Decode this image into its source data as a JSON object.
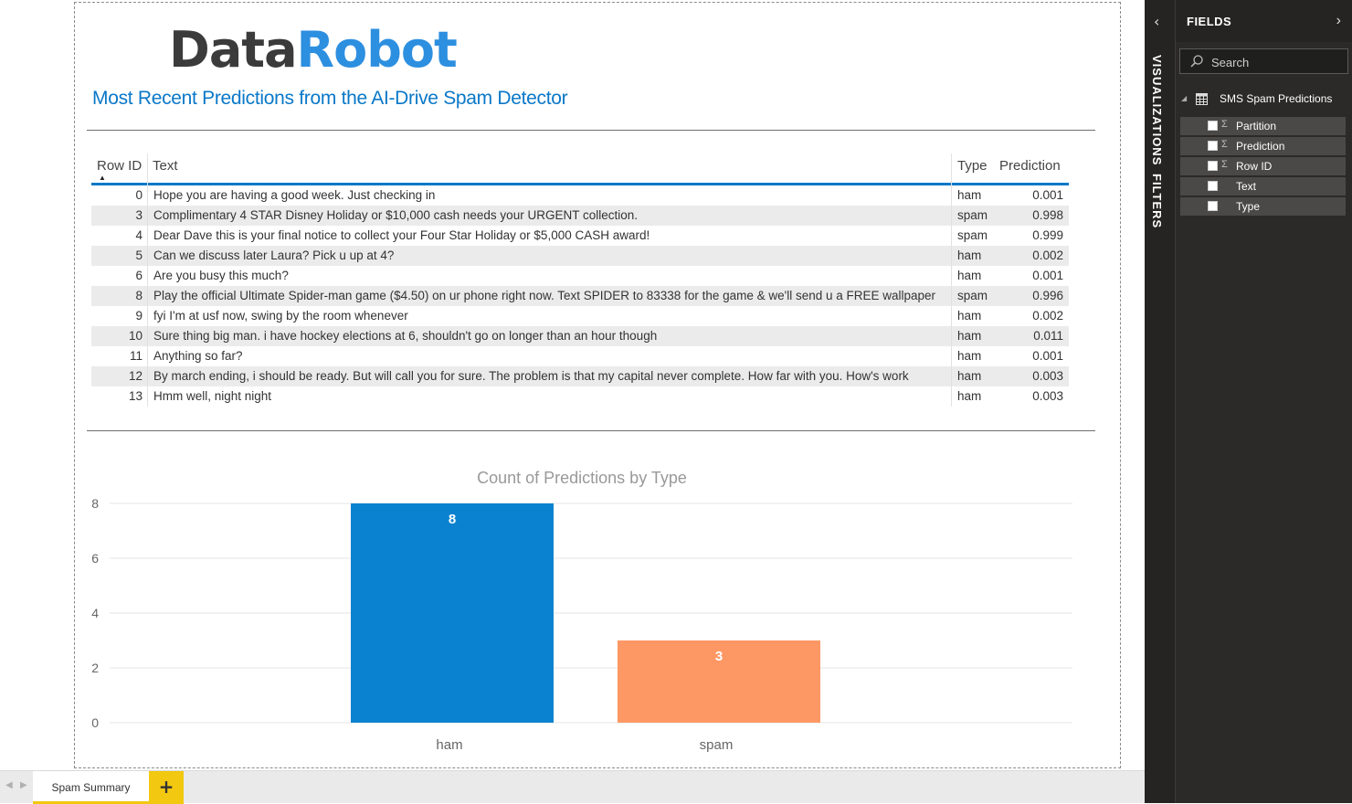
{
  "report": {
    "logo": {
      "part1": "Data",
      "part2": "Robot"
    },
    "title": "Most Recent Predictions from the AI-Drive Spam Detector",
    "table": {
      "columns": [
        "Row ID",
        "Text",
        "Type",
        "Prediction"
      ],
      "rows": [
        {
          "id": "0",
          "text": "Hope you are having a good week. Just checking in",
          "type": "ham",
          "prediction": "0.001"
        },
        {
          "id": "3",
          "text": "Complimentary 4 STAR Disney Holiday or $10,000 cash needs your URGENT collection.",
          "type": "spam",
          "prediction": "0.998"
        },
        {
          "id": "4",
          "text": "Dear Dave this is your final notice to collect your Four Star Holiday or $5,000 CASH award!",
          "type": "spam",
          "prediction": "0.999"
        },
        {
          "id": "5",
          "text": "Can we discuss later Laura? Pick u up at 4?",
          "type": "ham",
          "prediction": "0.002"
        },
        {
          "id": "6",
          "text": "Are you busy this much?",
          "type": "ham",
          "prediction": "0.001"
        },
        {
          "id": "8",
          "text": "Play the official Ultimate Spider-man game ($4.50) on ur phone right now. Text SPIDER to 83338 for the game & we'll send u a FREE wallpaper",
          "type": "spam",
          "prediction": "0.996"
        },
        {
          "id": "9",
          "text": "fyi I'm at usf now, swing by the room whenever",
          "type": "ham",
          "prediction": "0.002"
        },
        {
          "id": "10",
          "text": "Sure thing big man. i have hockey elections at 6, shouldn't go on longer than an hour though",
          "type": "ham",
          "prediction": "0.011"
        },
        {
          "id": "11",
          "text": "Anything so far?",
          "type": "ham",
          "prediction": "0.001"
        },
        {
          "id": "12",
          "text": "By march ending, i should be ready. But will call you for sure. The problem is that my capital never complete. How far with you. How's work",
          "type": "ham",
          "prediction": "0.003"
        },
        {
          "id": "13",
          "text": "Hmm well, night night",
          "type": "ham",
          "prediction": "0.003"
        }
      ]
    }
  },
  "chart_data": {
    "type": "bar",
    "title": "Count of Predictions by Type",
    "categories": [
      "ham",
      "spam"
    ],
    "values": [
      8,
      3
    ],
    "colors": [
      "#0a82d0",
      "#fd9865"
    ],
    "ylim": [
      0,
      8
    ],
    "yticks": [
      0,
      2,
      4,
      6,
      8
    ],
    "grid": true,
    "data_labels": true
  },
  "tabs": {
    "pages": [
      "Spam Summary"
    ],
    "add_label": "+",
    "accent": "#f2c811"
  },
  "side": {
    "visualizations_label": "VISUALIZATIONS",
    "filters_label": "FILTERS",
    "fields_title": "FIELDS",
    "search_placeholder": "Search",
    "table_name": "SMS Spam Predictions",
    "fields": [
      {
        "name": "Partition",
        "sigma": "Σ"
      },
      {
        "name": "Prediction",
        "sigma": "Σ"
      },
      {
        "name": "Row ID",
        "sigma": "Σ"
      },
      {
        "name": "Text",
        "sigma": ""
      },
      {
        "name": "Type",
        "sigma": ""
      }
    ]
  }
}
